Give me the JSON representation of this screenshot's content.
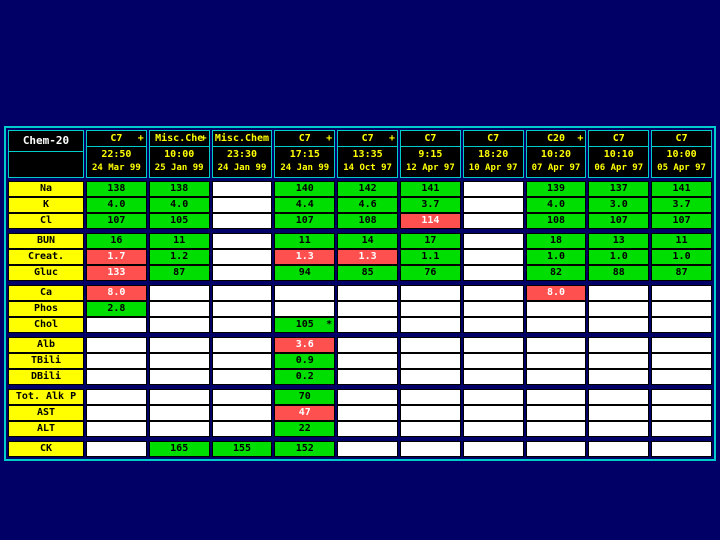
{
  "title": "Chem-20",
  "colors": {
    "background": "#000066",
    "table_border": "#00CCCC",
    "header_bg": "#000000",
    "header_text": "#FFFF00",
    "title_text": "#FFFFFF",
    "row_label_bg": "#FFFF00",
    "normal_result_bg": "#00DD00",
    "abnormal_result_bg": "#FF5050",
    "empty_cell_bg": "#FFFFFF"
  },
  "columns": [
    {
      "panel": "C7",
      "flag": "+",
      "time": "22:50",
      "date": "24 Mar 99"
    },
    {
      "panel": "Misc.Che",
      "flag": "+",
      "time": "10:00",
      "date": "25 Jan 99"
    },
    {
      "panel": "Misc.Chem",
      "flag": "",
      "time": "23:30",
      "date": "24 Jan 99"
    },
    {
      "panel": "C7",
      "flag": "+",
      "time": "17:15",
      "date": "24 Jan 99"
    },
    {
      "panel": "C7",
      "flag": "+",
      "time": "13:35",
      "date": "14 Oct 97"
    },
    {
      "panel": "C7",
      "flag": "",
      "time": "9:15",
      "date": "12 Apr 97"
    },
    {
      "panel": "C7",
      "flag": "",
      "time": "18:20",
      "date": "10 Apr 97"
    },
    {
      "panel": "C20",
      "flag": "+",
      "time": "10:20",
      "date": "07 Apr 97"
    },
    {
      "panel": "C7",
      "flag": "",
      "time": "10:10",
      "date": "06 Apr 97"
    },
    {
      "panel": "C7",
      "flag": "",
      "time": "10:00",
      "date": "05 Apr 97"
    }
  ],
  "rows": [
    {
      "label": "Na",
      "group": 0,
      "cells": [
        {
          "v": "138",
          "s": "n"
        },
        {
          "v": "138",
          "s": "n"
        },
        {
          "v": "",
          "s": "e"
        },
        {
          "v": "140",
          "s": "n"
        },
        {
          "v": "142",
          "s": "n"
        },
        {
          "v": "141",
          "s": "n"
        },
        {
          "v": "",
          "s": "e"
        },
        {
          "v": "139",
          "s": "n"
        },
        {
          "v": "137",
          "s": "n"
        },
        {
          "v": "141",
          "s": "n"
        }
      ]
    },
    {
      "label": "K",
      "group": 0,
      "cells": [
        {
          "v": "4.0",
          "s": "n"
        },
        {
          "v": "4.0",
          "s": "n"
        },
        {
          "v": "",
          "s": "e"
        },
        {
          "v": "4.4",
          "s": "n"
        },
        {
          "v": "4.6",
          "s": "n"
        },
        {
          "v": "3.7",
          "s": "n"
        },
        {
          "v": "",
          "s": "e"
        },
        {
          "v": "4.0",
          "s": "n"
        },
        {
          "v": "3.0",
          "s": "n"
        },
        {
          "v": "3.7",
          "s": "n"
        }
      ]
    },
    {
      "label": "Cl",
      "group": 0,
      "cells": [
        {
          "v": "107",
          "s": "n"
        },
        {
          "v": "105",
          "s": "n"
        },
        {
          "v": "",
          "s": "e"
        },
        {
          "v": "107",
          "s": "n"
        },
        {
          "v": "108",
          "s": "n"
        },
        {
          "v": "114",
          "s": "a"
        },
        {
          "v": "",
          "s": "e"
        },
        {
          "v": "108",
          "s": "n"
        },
        {
          "v": "107",
          "s": "n"
        },
        {
          "v": "107",
          "s": "n"
        }
      ]
    },
    {
      "label": "BUN",
      "group": 1,
      "cells": [
        {
          "v": "16",
          "s": "n"
        },
        {
          "v": "11",
          "s": "n"
        },
        {
          "v": "",
          "s": "e"
        },
        {
          "v": "11",
          "s": "n"
        },
        {
          "v": "14",
          "s": "n"
        },
        {
          "v": "17",
          "s": "n"
        },
        {
          "v": "",
          "s": "e"
        },
        {
          "v": "18",
          "s": "n"
        },
        {
          "v": "13",
          "s": "n"
        },
        {
          "v": "11",
          "s": "n"
        }
      ]
    },
    {
      "label": "Creat.",
      "group": 1,
      "cells": [
        {
          "v": "1.7",
          "s": "a"
        },
        {
          "v": "1.2",
          "s": "n"
        },
        {
          "v": "",
          "s": "e"
        },
        {
          "v": "1.3",
          "s": "a"
        },
        {
          "v": "1.3",
          "s": "a"
        },
        {
          "v": "1.1",
          "s": "n"
        },
        {
          "v": "",
          "s": "e"
        },
        {
          "v": "1.0",
          "s": "n"
        },
        {
          "v": "1.0",
          "s": "n"
        },
        {
          "v": "1.0",
          "s": "n"
        }
      ]
    },
    {
      "label": "Gluc",
      "group": 1,
      "cells": [
        {
          "v": "133",
          "s": "a"
        },
        {
          "v": "87",
          "s": "n"
        },
        {
          "v": "",
          "s": "e"
        },
        {
          "v": "94",
          "s": "n"
        },
        {
          "v": "85",
          "s": "n"
        },
        {
          "v": "76",
          "s": "n"
        },
        {
          "v": "",
          "s": "e"
        },
        {
          "v": "82",
          "s": "n"
        },
        {
          "v": "88",
          "s": "n"
        },
        {
          "v": "87",
          "s": "n"
        }
      ]
    },
    {
      "label": "Ca",
      "group": 2,
      "cells": [
        {
          "v": "8.0",
          "s": "a"
        },
        {
          "v": "",
          "s": "e"
        },
        {
          "v": "",
          "s": "e"
        },
        {
          "v": "",
          "s": "e"
        },
        {
          "v": "",
          "s": "e"
        },
        {
          "v": "",
          "s": "e"
        },
        {
          "v": "",
          "s": "e"
        },
        {
          "v": "8.0",
          "s": "a"
        },
        {
          "v": "",
          "s": "e"
        },
        {
          "v": "",
          "s": "e"
        }
      ]
    },
    {
      "label": "Phos",
      "group": 2,
      "cells": [
        {
          "v": "2.8",
          "s": "n"
        },
        {
          "v": "",
          "s": "e"
        },
        {
          "v": "",
          "s": "e"
        },
        {
          "v": "",
          "s": "e"
        },
        {
          "v": "",
          "s": "e"
        },
        {
          "v": "",
          "s": "e"
        },
        {
          "v": "",
          "s": "e"
        },
        {
          "v": "",
          "s": "e"
        },
        {
          "v": "",
          "s": "e"
        },
        {
          "v": "",
          "s": "e"
        }
      ]
    },
    {
      "label": "Chol",
      "group": 2,
      "cells": [
        {
          "v": "",
          "s": "e"
        },
        {
          "v": "",
          "s": "e"
        },
        {
          "v": "",
          "s": "e"
        },
        {
          "v": "105",
          "s": "n",
          "f": "*"
        },
        {
          "v": "",
          "s": "e"
        },
        {
          "v": "",
          "s": "e"
        },
        {
          "v": "",
          "s": "e"
        },
        {
          "v": "",
          "s": "e"
        },
        {
          "v": "",
          "s": "e"
        },
        {
          "v": "",
          "s": "e"
        }
      ]
    },
    {
      "label": "Alb",
      "group": 3,
      "cells": [
        {
          "v": "",
          "s": "e"
        },
        {
          "v": "",
          "s": "e"
        },
        {
          "v": "",
          "s": "e"
        },
        {
          "v": "3.6",
          "s": "a"
        },
        {
          "v": "",
          "s": "e"
        },
        {
          "v": "",
          "s": "e"
        },
        {
          "v": "",
          "s": "e"
        },
        {
          "v": "",
          "s": "e"
        },
        {
          "v": "",
          "s": "e"
        },
        {
          "v": "",
          "s": "e"
        }
      ]
    },
    {
      "label": "TBili",
      "group": 3,
      "cells": [
        {
          "v": "",
          "s": "e"
        },
        {
          "v": "",
          "s": "e"
        },
        {
          "v": "",
          "s": "e"
        },
        {
          "v": "0.9",
          "s": "n"
        },
        {
          "v": "",
          "s": "e"
        },
        {
          "v": "",
          "s": "e"
        },
        {
          "v": "",
          "s": "e"
        },
        {
          "v": "",
          "s": "e"
        },
        {
          "v": "",
          "s": "e"
        },
        {
          "v": "",
          "s": "e"
        }
      ]
    },
    {
      "label": "DBili",
      "group": 3,
      "cells": [
        {
          "v": "",
          "s": "e"
        },
        {
          "v": "",
          "s": "e"
        },
        {
          "v": "",
          "s": "e"
        },
        {
          "v": "0.2",
          "s": "n"
        },
        {
          "v": "",
          "s": "e"
        },
        {
          "v": "",
          "s": "e"
        },
        {
          "v": "",
          "s": "e"
        },
        {
          "v": "",
          "s": "e"
        },
        {
          "v": "",
          "s": "e"
        },
        {
          "v": "",
          "s": "e"
        }
      ]
    },
    {
      "label": "Tot. Alk P",
      "group": 4,
      "cells": [
        {
          "v": "",
          "s": "e"
        },
        {
          "v": "",
          "s": "e"
        },
        {
          "v": "",
          "s": "e"
        },
        {
          "v": "70",
          "s": "n"
        },
        {
          "v": "",
          "s": "e"
        },
        {
          "v": "",
          "s": "e"
        },
        {
          "v": "",
          "s": "e"
        },
        {
          "v": "",
          "s": "e"
        },
        {
          "v": "",
          "s": "e"
        },
        {
          "v": "",
          "s": "e"
        }
      ]
    },
    {
      "label": "AST",
      "group": 4,
      "cells": [
        {
          "v": "",
          "s": "e"
        },
        {
          "v": "",
          "s": "e"
        },
        {
          "v": "",
          "s": "e"
        },
        {
          "v": "47",
          "s": "a"
        },
        {
          "v": "",
          "s": "e"
        },
        {
          "v": "",
          "s": "e"
        },
        {
          "v": "",
          "s": "e"
        },
        {
          "v": "",
          "s": "e"
        },
        {
          "v": "",
          "s": "e"
        },
        {
          "v": "",
          "s": "e"
        }
      ]
    },
    {
      "label": "ALT",
      "group": 4,
      "cells": [
        {
          "v": "",
          "s": "e"
        },
        {
          "v": "",
          "s": "e"
        },
        {
          "v": "",
          "s": "e"
        },
        {
          "v": "22",
          "s": "n"
        },
        {
          "v": "",
          "s": "e"
        },
        {
          "v": "",
          "s": "e"
        },
        {
          "v": "",
          "s": "e"
        },
        {
          "v": "",
          "s": "e"
        },
        {
          "v": "",
          "s": "e"
        },
        {
          "v": "",
          "s": "e"
        }
      ]
    },
    {
      "label": "CK",
      "group": 5,
      "cells": [
        {
          "v": "",
          "s": "e"
        },
        {
          "v": "165",
          "s": "n"
        },
        {
          "v": "155",
          "s": "n"
        },
        {
          "v": "152",
          "s": "n"
        },
        {
          "v": "",
          "s": "e"
        },
        {
          "v": "",
          "s": "e"
        },
        {
          "v": "",
          "s": "e"
        },
        {
          "v": "",
          "s": "e"
        },
        {
          "v": "",
          "s": "e"
        },
        {
          "v": "",
          "s": "e"
        }
      ]
    }
  ]
}
